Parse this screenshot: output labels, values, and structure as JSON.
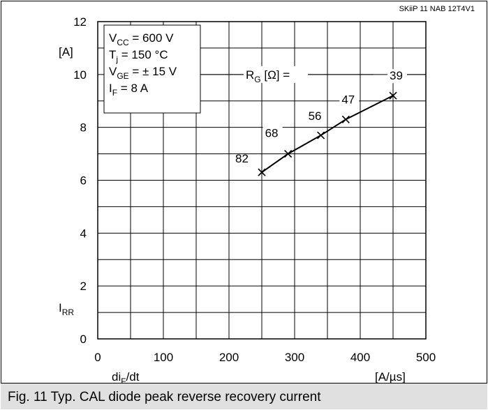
{
  "chart_data": {
    "type": "line",
    "header_code": "SKiiP 11 NAB 12T4V1",
    "y_unit": "[A]",
    "y_label_main": "I",
    "y_label_sub": "RR",
    "x_label_main": "di",
    "x_label_sub": "F",
    "x_label_tail": "/dt",
    "x_unit": "[A/µs]",
    "xlim": [
      0,
      500
    ],
    "ylim": [
      0,
      12
    ],
    "x_ticks": [
      "0",
      "100",
      "200",
      "300",
      "400",
      "500"
    ],
    "y_ticks": [
      "0",
      "2",
      "4",
      "6",
      "8",
      "10",
      "12"
    ],
    "grid": true,
    "conditions": [
      {
        "main": "V",
        "sub": "CC",
        "rest": " = 600 V"
      },
      {
        "main": "T",
        "sub": "j",
        "rest": "   = 150 °C"
      },
      {
        "main": "V",
        "sub": "GE",
        "rest": " = ± 15 V"
      },
      {
        "main": "I",
        "sub": "F",
        "rest": "   = 8 A"
      }
    ],
    "param_label_main": "R",
    "param_label_sub": "G",
    "param_label_rest": " [Ω] =",
    "series": [
      {
        "points": [
          {
            "x": 250,
            "y": 6.3,
            "label": "82"
          },
          {
            "x": 290,
            "y": 7.0,
            "label": "68"
          },
          {
            "x": 340,
            "y": 7.7,
            "label": "56"
          },
          {
            "x": 378,
            "y": 8.3,
            "label": "47"
          },
          {
            "x": 450,
            "y": 9.2,
            "label": "39"
          }
        ]
      }
    ]
  },
  "caption": "Fig. 11 Typ. CAL diode peak reverse recovery current"
}
